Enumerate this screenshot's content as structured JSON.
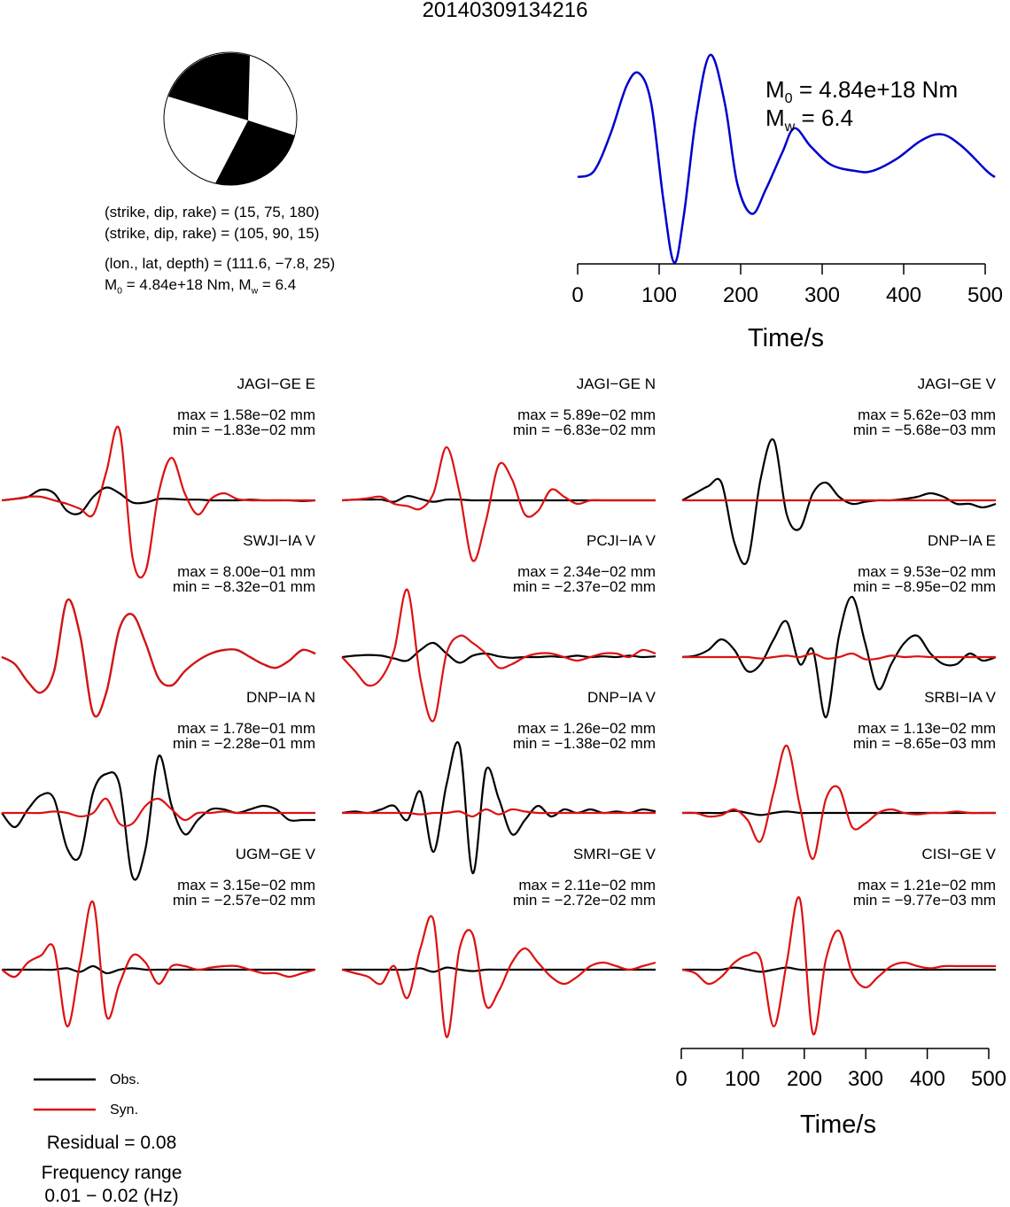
{
  "title": "20140309134216",
  "mechanism": {
    "plane1": "(strike, dip, rake) = (15, 75, 180)",
    "plane2": "(strike, dip, rake) = (105, 90, 15)",
    "location": "(lon., lat, depth) = (111.6, −7.8, 25)",
    "m0": "4.84e+18",
    "mw": "6.4"
  },
  "stf": {
    "m0_text": "= 4.84e+18 Nm",
    "mw_text": "= 6.4",
    "color": "#0000cc"
  },
  "axis": {
    "xlabel": "Time/s",
    "ticks": [
      "0",
      "100",
      "200",
      "300",
      "400",
      "500"
    ]
  },
  "legend": {
    "obs": "Obs.",
    "syn": "Syn.",
    "obs_color": "#000000",
    "syn_color": "#dd1111"
  },
  "residual": "Residual = 0.08",
  "freq": {
    "line1": "Frequency range",
    "line2": "0.01 − 0.02 (Hz)"
  },
  "chart_data": {
    "type": "line",
    "title": "20140309134216",
    "xlabel": "Time/s",
    "xlim": [
      0,
      510
    ],
    "stf_time": [
      0,
      20,
      40,
      60,
      75,
      90,
      105,
      118,
      130,
      145,
      162,
      180,
      195,
      213,
      230,
      250,
      265,
      285,
      310,
      340,
      360,
      390,
      420,
      445,
      470,
      500,
      510
    ],
    "stf_amp": [
      0.0,
      0.05,
      0.35,
      0.75,
      0.85,
      0.6,
      -0.2,
      -0.7,
      -0.3,
      0.5,
      1.0,
      0.6,
      -0.05,
      -0.3,
      -0.1,
      0.2,
      0.4,
      0.25,
      0.1,
      0.05,
      0.05,
      0.15,
      0.3,
      0.35,
      0.25,
      0.05,
      0.0
    ],
    "stations": [
      {
        "name": "JAGI−GE E",
        "max": "max = 1.58e−02 mm",
        "min": "min = −1.83e−02 mm",
        "obs": [
          0,
          0.02,
          0.05,
          0.15,
          0.1,
          -0.15,
          -0.18,
          0.05,
          0.18,
          0.1,
          -0.03,
          -0.03,
          0.02,
          0.02,
          0.01,
          0.01,
          0,
          0,
          0,
          0.01,
          0,
          0,
          0,
          -0.01,
          0
        ],
        "syn": [
          0,
          0.02,
          0.05,
          0.05,
          0,
          -0.05,
          -0.12,
          -0.2,
          0.4,
          1.0,
          -0.8,
          -1.0,
          0.1,
          0.6,
          0.1,
          -0.2,
          0.02,
          0.1,
          0.02,
          0,
          0,
          0,
          0,
          0,
          0
        ]
      },
      {
        "name": "JAGI−GE N",
        "max": "max = 5.89e−02 mm",
        "min": "min = −6.83e−02 mm",
        "obs": [
          0,
          0.01,
          0.01,
          0.01,
          -0.02,
          0.06,
          0.02,
          -0.02,
          0.01,
          0.01,
          0,
          0,
          0,
          0,
          0,
          0,
          0,
          0,
          0,
          0,
          0,
          0,
          0,
          0,
          0
        ],
        "syn": [
          0,
          0.01,
          0.03,
          0.05,
          -0.05,
          -0.08,
          -0.12,
          0.1,
          0.75,
          0.1,
          -0.85,
          -0.3,
          0.5,
          0.3,
          -0.2,
          -0.15,
          0.15,
          0.05,
          -0.05,
          0,
          0,
          0,
          0,
          0,
          0
        ]
      },
      {
        "name": "JAGI−GE V",
        "max": "max = 5.62e−03 mm",
        "min": "min = −5.68e−03 mm",
        "obs": [
          0,
          0.1,
          0.2,
          0.25,
          -0.6,
          -0.85,
          0.3,
          0.85,
          -0.2,
          -0.4,
          0.1,
          0.25,
          0.05,
          -0.05,
          -0.02,
          0,
          0,
          0.02,
          0.05,
          0.1,
          0.05,
          -0.05,
          -0.05,
          -0.1,
          -0.05
        ],
        "syn": [
          0,
          0,
          0,
          0,
          0,
          0,
          0,
          0,
          0,
          0,
          0,
          0,
          0,
          0,
          0,
          0,
          0,
          0,
          0,
          0,
          0,
          0,
          0,
          0,
          0
        ]
      },
      {
        "name": "SWJI−IA V",
        "max": "max = 8.00e−01 mm",
        "min": "min = −8.32e−01 mm",
        "obs": [
          0,
          -0.1,
          -0.35,
          -0.5,
          -0.2,
          0.8,
          0.3,
          -0.8,
          -0.5,
          0.4,
          0.6,
          0.2,
          -0.3,
          -0.4,
          -0.2,
          -0.05,
          0.05,
          0.1,
          0.1,
          0,
          -0.1,
          -0.15,
          -0.05,
          0.1,
          0.05
        ],
        "syn": [
          0,
          -0.1,
          -0.35,
          -0.5,
          -0.2,
          0.8,
          0.3,
          -0.8,
          -0.5,
          0.4,
          0.6,
          0.2,
          -0.3,
          -0.4,
          -0.2,
          -0.05,
          0.05,
          0.1,
          0.1,
          0,
          -0.1,
          -0.15,
          -0.05,
          0.1,
          0.05
        ]
      },
      {
        "name": "PCJI−IA V",
        "max": "max = 2.34e−02 mm",
        "min": "min = −2.37e−02 mm",
        "obs": [
          0,
          0.02,
          0.03,
          0.02,
          -0.02,
          -0.05,
          0.1,
          0.2,
          0.05,
          -0.08,
          0.02,
          0.05,
          0.01,
          -0.01,
          0,
          0,
          0.01,
          0,
          0.02,
          0,
          0.01,
          0,
          0.02,
          0,
          0.01
        ],
        "syn": [
          0,
          -0.2,
          -0.4,
          -0.3,
          0.1,
          0.95,
          -0.3,
          -0.9,
          0.05,
          0.3,
          0.2,
          0.05,
          -0.15,
          -0.1,
          0,
          0.05,
          0.05,
          0,
          -0.05,
          0,
          0.05,
          0.05,
          0,
          0.1,
          0.05
        ]
      },
      {
        "name": "DNP−IA E",
        "max": "max = 9.53e−02 mm",
        "min": "min = −8.95e−02 mm",
        "obs": [
          0,
          0.02,
          0.1,
          0.25,
          0.1,
          -0.2,
          -0.1,
          0.25,
          0.5,
          -0.1,
          0.1,
          -0.85,
          0.3,
          0.85,
          0.2,
          -0.45,
          -0.1,
          0.2,
          0.3,
          0.05,
          -0.1,
          -0.1,
          0.05,
          -0.05,
          0
        ],
        "syn": [
          0,
          0,
          0,
          0,
          0,
          0,
          -0.02,
          0,
          0.02,
          0,
          0.05,
          -0.02,
          0,
          0.05,
          -0.03,
          -0.02,
          0.02,
          0,
          0.01,
          0,
          0,
          0,
          0,
          0,
          0
        ]
      },
      {
        "name": "DNP−IA N",
        "max": "max = 1.78e−01 mm",
        "min": "min = −2.28e−01 mm",
        "obs": [
          0,
          -0.2,
          0.05,
          0.25,
          0.2,
          -0.5,
          -0.6,
          0.3,
          0.55,
          0.4,
          -0.9,
          -0.5,
          0.8,
          0.1,
          -0.3,
          -0.1,
          0.05,
          0.05,
          0,
          0.05,
          0.1,
          0.05,
          -0.1,
          -0.1,
          -0.1
        ],
        "syn": [
          0,
          0,
          0,
          0,
          0.02,
          0,
          -0.05,
          0,
          0.2,
          -0.15,
          -0.15,
          0.1,
          0.2,
          0.05,
          -0.1,
          0,
          0,
          0.02,
          0,
          0,
          0,
          0,
          0,
          0,
          0
        ]
      },
      {
        "name": "DNP−IA V",
        "max": "max = 1.26e−02 mm",
        "min": "min = −1.38e−02 mm",
        "obs": [
          0,
          0.02,
          0,
          0.05,
          0.1,
          -0.1,
          0.3,
          -0.55,
          0.4,
          0.95,
          -0.85,
          0.6,
          0.2,
          -0.3,
          -0.1,
          0.1,
          -0.05,
          0.05,
          0,
          0.05,
          0,
          0.02,
          0,
          0.05,
          0.02
        ],
        "syn": [
          0,
          0,
          0,
          0,
          0,
          0,
          -0.02,
          0,
          0,
          0.02,
          -0.05,
          0.05,
          -0.02,
          0.05,
          0.02,
          0,
          0,
          0,
          0,
          0,
          0,
          0,
          0,
          0,
          0
        ]
      },
      {
        "name": "SRBI−IA V",
        "max": "max = 1.13e−02 mm",
        "min": "min = −8.65e−03 mm",
        "obs": [
          0,
          0,
          0,
          0,
          0.03,
          0,
          -0.03,
          0,
          0.02,
          0,
          0,
          0,
          0,
          0,
          0,
          0,
          0,
          0,
          0,
          0,
          0,
          0,
          0,
          0,
          0
        ],
        "syn": [
          0,
          0,
          -0.05,
          -0.03,
          0.05,
          -0.1,
          -0.4,
          0.3,
          0.95,
          0.1,
          -0.65,
          0.2,
          0.35,
          -0.2,
          -0.15,
          0,
          0.05,
          0,
          -0.02,
          0,
          0,
          0.02,
          0,
          0,
          0
        ]
      },
      {
        "name": "UGM−GE V",
        "max": "max = 3.15e−02 mm",
        "min": "min = −2.57e−02 mm",
        "obs": [
          0,
          0,
          0,
          0,
          0,
          0.02,
          -0.03,
          0.05,
          -0.05,
          0,
          0.02,
          0,
          0,
          0,
          0,
          0,
          0,
          0,
          0,
          0,
          0,
          0,
          0,
          0,
          0
        ],
        "syn": [
          0,
          -0.1,
          0.1,
          0.2,
          0.3,
          -0.8,
          0.1,
          0.95,
          -0.65,
          -0.2,
          0.2,
          0.1,
          -0.2,
          0.05,
          0.05,
          0,
          0.03,
          0.05,
          0.05,
          0,
          -0.05,
          -0.05,
          -0.1,
          -0.05,
          0
        ]
      },
      {
        "name": "SMRI−GE V",
        "max": "max = 2.11e−02 mm",
        "min": "min = −2.72e−02 mm",
        "obs": [
          0,
          0,
          0,
          0,
          0,
          0,
          0.02,
          -0.03,
          0.03,
          0,
          -0.02,
          0,
          0,
          0,
          0,
          0,
          0,
          0,
          0,
          0,
          0,
          0,
          0,
          0,
          0
        ],
        "syn": [
          0,
          -0.05,
          -0.1,
          -0.2,
          0.05,
          -0.4,
          0.3,
          0.7,
          -0.95,
          0.3,
          0.5,
          -0.5,
          -0.3,
          0.1,
          0.3,
          0.1,
          -0.1,
          -0.2,
          -0.1,
          0.05,
          0.1,
          0.05,
          0,
          0.05,
          0.1
        ]
      },
      {
        "name": "CISI−GE V",
        "max": "max = 1.21e−02 mm",
        "min": "min = −9.77e−03 mm",
        "obs": [
          0,
          0,
          0,
          0,
          0.03,
          0,
          -0.03,
          0,
          0.03,
          0,
          0,
          0,
          0,
          0,
          0,
          0,
          0,
          0,
          0,
          0,
          0,
          0,
          0,
          0,
          0
        ],
        "syn": [
          0,
          -0.05,
          -0.2,
          -0.1,
          0.1,
          0.2,
          0.15,
          -0.8,
          0.1,
          1.0,
          -0.9,
          0.15,
          0.55,
          -0.05,
          -0.25,
          -0.1,
          0.05,
          0.1,
          0.05,
          0.02,
          0.05,
          0.05,
          0.05,
          0.05,
          0.05
        ]
      }
    ]
  }
}
